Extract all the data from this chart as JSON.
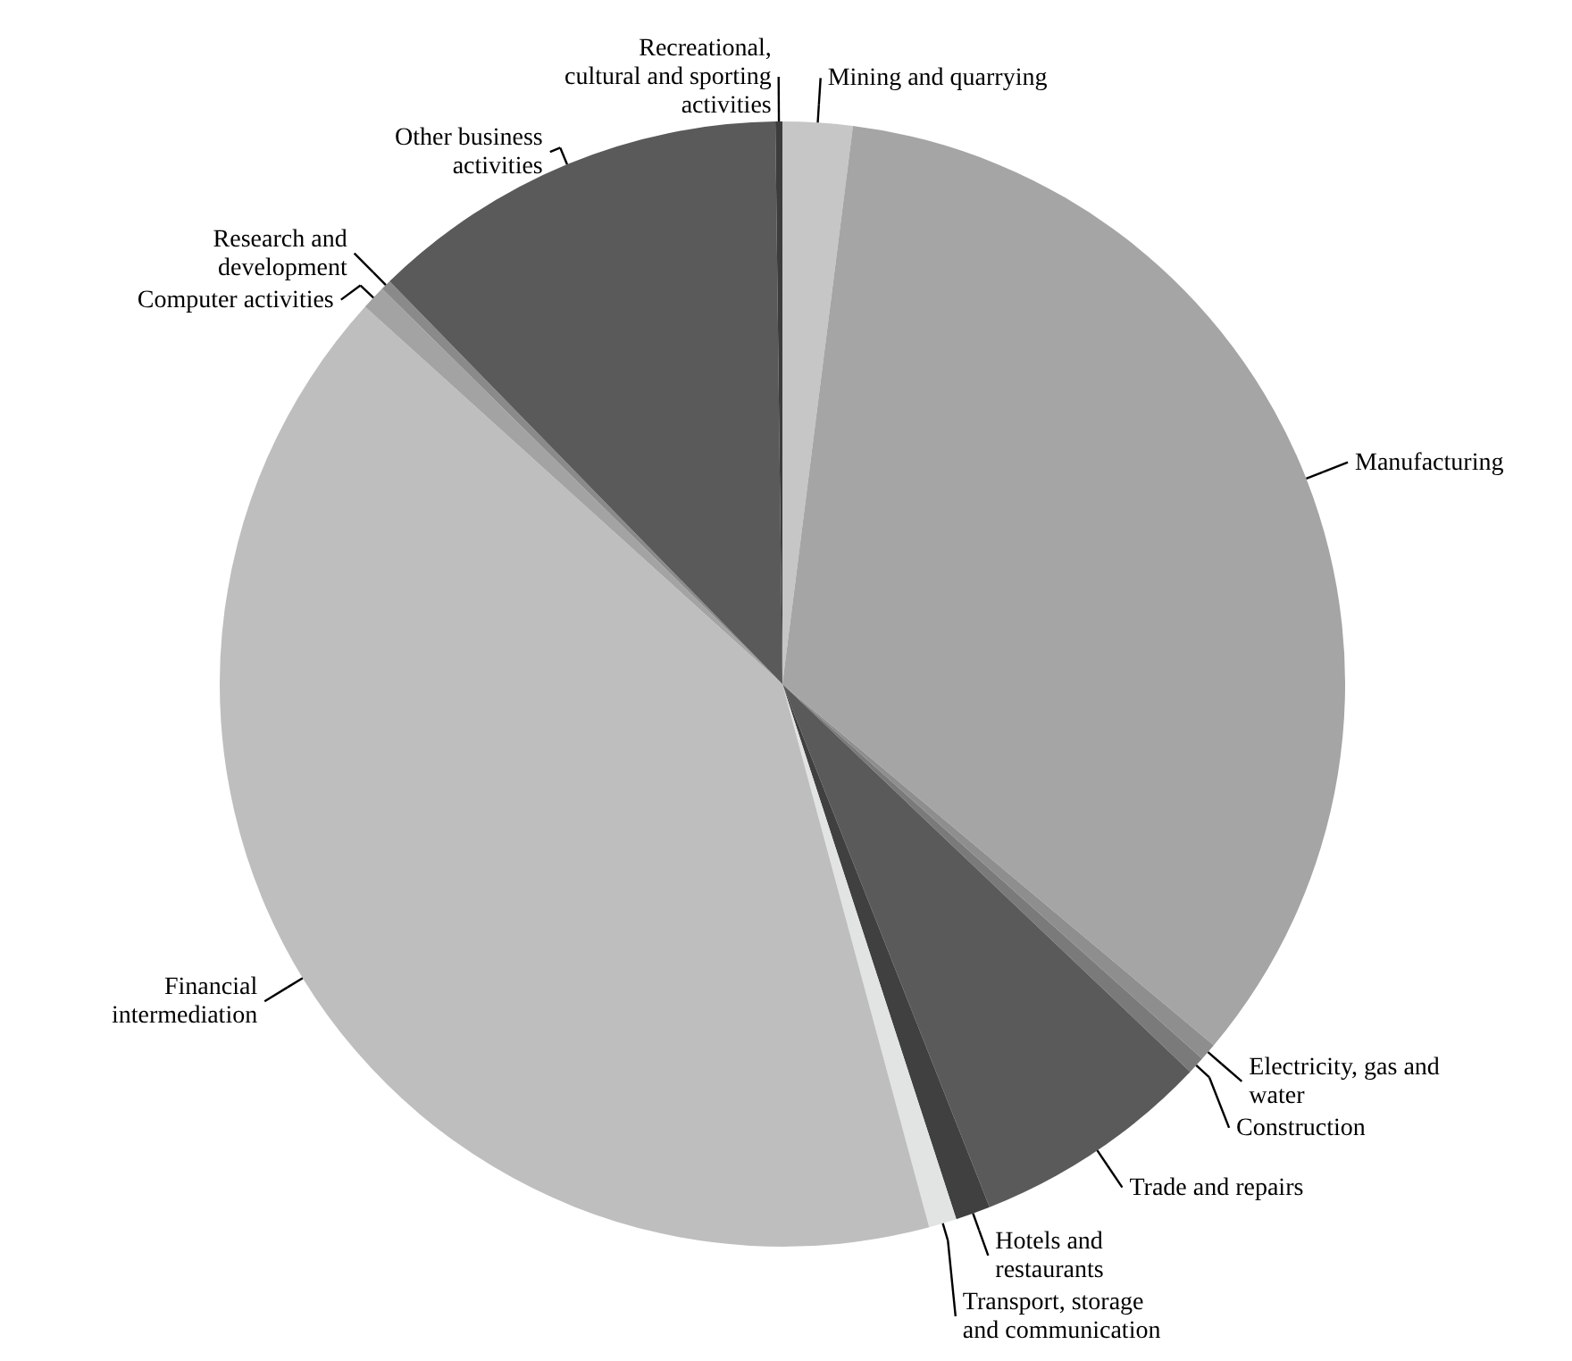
{
  "chart_data": {
    "type": "pie",
    "categories": [
      "Mining and quarrying",
      "Manufacturing",
      "Electricity, gas and water",
      "Construction",
      "Trade and repairs",
      "Hotels and restaurants",
      "Transport, storage and communication",
      "Financial intermediation",
      "Computer activities",
      "Research and development",
      "Other business activities",
      "Recreational, cultural and sporting activities"
    ],
    "values": [
      2.0,
      34.1,
      0.5,
      0.5,
      6.9,
      1.0,
      0.8,
      40.9,
      0.7,
      0.3,
      12.1,
      0.2
    ],
    "colors": [
      "#c6c6c6",
      "#a5a5a5",
      "#8e8e8e",
      "#7a7a7a",
      "#5a5a5a",
      "#404040",
      "#e2e4e4",
      "#bebebe",
      "#a3a3a3",
      "#8a8a8a",
      "#5a5a5a",
      "#3c3c3c"
    ]
  }
}
